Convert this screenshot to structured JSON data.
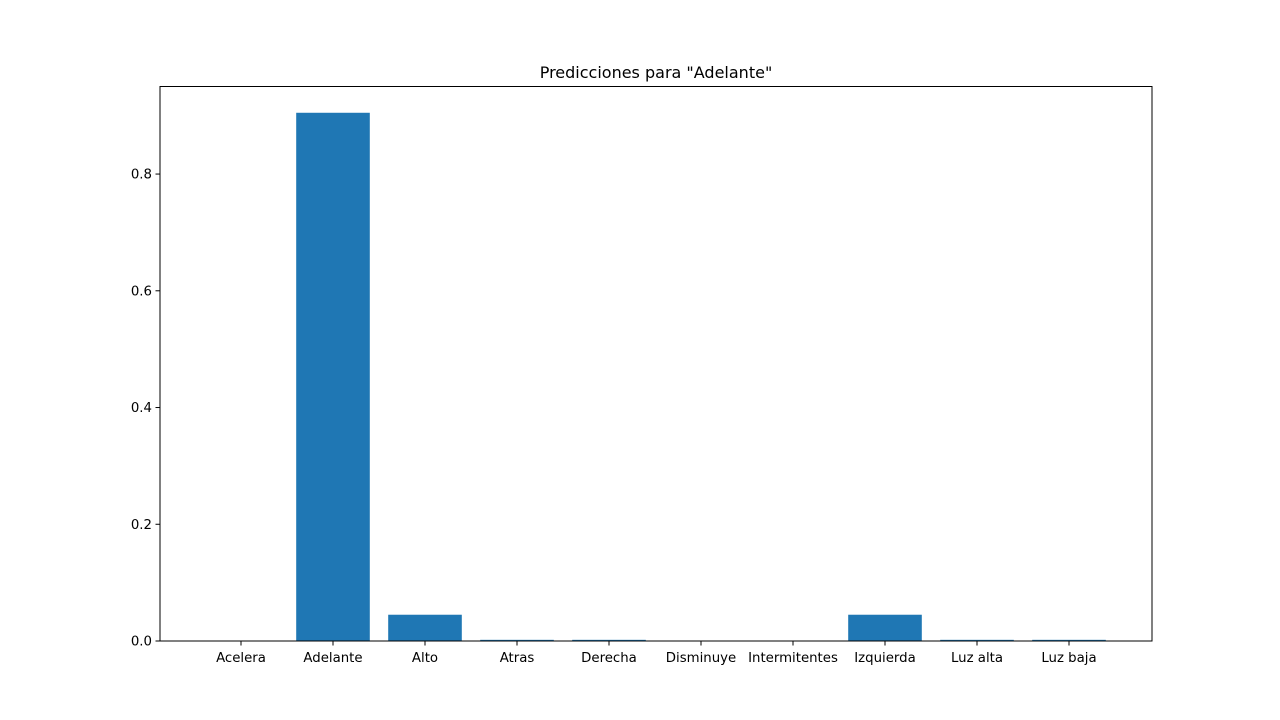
{
  "chart_data": {
    "type": "bar",
    "title": "Predicciones para \"Adelante\"",
    "xlabel": "",
    "ylabel": "",
    "categories": [
      "Acelera",
      "Adelante",
      "Alto",
      "Atras",
      "Derecha",
      "Disminuye",
      "Intermitentes",
      "Izquierda",
      "Luz alta",
      "Luz baja"
    ],
    "values": [
      0.0,
      0.905,
      0.045,
      0.002,
      0.002,
      0.0,
      0.0,
      0.045,
      0.002,
      0.002
    ],
    "ylim": [
      0,
      0.95
    ],
    "yticks": [
      0.0,
      0.2,
      0.4,
      0.6,
      0.8
    ],
    "ytick_labels": [
      "0.0",
      "0.2",
      "0.4",
      "0.6",
      "0.8"
    ],
    "bar_color": "#1f77b4",
    "grid": false,
    "legend": "none"
  }
}
